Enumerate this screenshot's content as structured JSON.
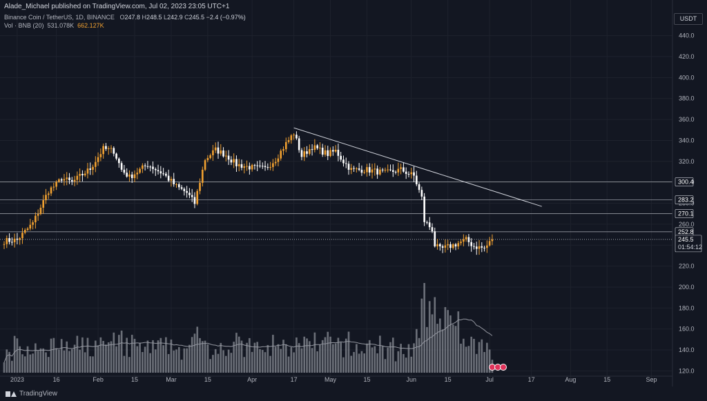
{
  "header": {
    "published": "Alade_Michael published on TradingView.com, Jul 02, 2023 23:05 UTC+1",
    "symbol": "Binance Coin / TetherUS, 1D, BINANCE",
    "o_label": "O",
    "o": "247.8",
    "h_label": "H",
    "h": "248.5",
    "l_label": "L",
    "l": "242.9",
    "c_label": "C",
    "c": "245.5",
    "change": "−2.4 (−0.97%)",
    "volume_label": "Vol · BNB (20)",
    "volume_value": "531.078K",
    "volume_ma": "662.127K"
  },
  "axis_unit": "USDT",
  "footer": {
    "brand": "TradingView"
  },
  "colors": {
    "bg": "#131722",
    "up": "#f0a030",
    "down": "#ffffff",
    "vol": "#8a8d96",
    "grid": "#1e222d"
  },
  "chart_data": {
    "type": "candlestick",
    "title": "",
    "y_ticks": [
      440,
      420,
      400,
      380,
      360,
      340,
      320,
      300,
      280,
      260,
      240,
      220,
      200,
      180,
      160,
      140,
      120
    ],
    "ylim": [
      113,
      449
    ],
    "x_ticks": [
      {
        "label": "2023",
        "date": "2023-01-01"
      },
      {
        "label": "16",
        "date": "2023-01-16"
      },
      {
        "label": "Feb",
        "date": "2023-02-01"
      },
      {
        "label": "15",
        "date": "2023-02-15"
      },
      {
        "label": "Mar",
        "date": "2023-03-01"
      },
      {
        "label": "15",
        "date": "2023-03-15"
      },
      {
        "label": "Apr",
        "date": "2023-04-01"
      },
      {
        "label": "17",
        "date": "2023-04-17"
      },
      {
        "label": "May",
        "date": "2023-05-01"
      },
      {
        "label": "15",
        "date": "2023-05-15"
      },
      {
        "label": "Jun",
        "date": "2023-06-01"
      },
      {
        "label": "15",
        "date": "2023-06-15"
      },
      {
        "label": "Jul",
        "date": "2023-07-01"
      },
      {
        "label": "17",
        "date": "2023-07-17"
      },
      {
        "label": "Aug",
        "date": "2023-08-01"
      },
      {
        "label": "15",
        "date": "2023-08-15"
      },
      {
        "label": "Sep",
        "date": "2023-09-01"
      }
    ],
    "xlim": [
      "2022-12-27",
      "2023-09-08"
    ],
    "horizontal_levels": [
      {
        "label": "300.4",
        "value": 300.4
      },
      {
        "label": "283.2",
        "value": 283.2
      },
      {
        "label": "270.1",
        "value": 270.1
      },
      {
        "label": "252.8",
        "value": 252.8
      }
    ],
    "current_price": {
      "label": "245.5",
      "value": 245.5,
      "countdown": "01:54:12"
    },
    "trendline": [
      {
        "date": "2023-04-17",
        "value": 352
      },
      {
        "date": "2023-07-21",
        "value": 277
      }
    ],
    "anchors": [
      [
        "2022-12-27",
        244
      ],
      [
        "2023-01-01",
        245
      ],
      [
        "2023-01-07",
        261
      ],
      [
        "2023-01-13",
        292
      ],
      [
        "2023-01-16",
        298
      ],
      [
        "2023-01-18",
        304
      ],
      [
        "2023-01-22",
        300
      ],
      [
        "2023-01-29",
        313
      ],
      [
        "2023-02-03",
        332
      ],
      [
        "2023-02-07",
        330
      ],
      [
        "2023-02-10",
        312
      ],
      [
        "2023-02-13",
        305
      ],
      [
        "2023-02-20",
        317
      ],
      [
        "2023-02-26",
        308
      ],
      [
        "2023-03-03",
        296
      ],
      [
        "2023-03-07",
        290
      ],
      [
        "2023-03-10",
        280
      ],
      [
        "2023-03-12",
        301
      ],
      [
        "2023-03-14",
        322
      ],
      [
        "2023-03-18",
        331
      ],
      [
        "2023-03-22",
        326
      ],
      [
        "2023-03-26",
        317
      ],
      [
        "2023-04-01",
        314
      ],
      [
        "2023-04-06",
        313
      ],
      [
        "2023-04-10",
        322
      ],
      [
        "2023-04-14",
        337
      ],
      [
        "2023-04-17",
        347
      ],
      [
        "2023-04-20",
        325
      ],
      [
        "2023-04-24",
        334
      ],
      [
        "2023-04-30",
        327
      ],
      [
        "2023-05-03",
        330
      ],
      [
        "2023-05-06",
        320
      ],
      [
        "2023-05-09",
        312
      ],
      [
        "2023-05-15",
        312
      ],
      [
        "2023-05-22",
        309
      ],
      [
        "2023-05-28",
        312
      ],
      [
        "2023-06-02",
        306
      ],
      [
        "2023-06-05",
        285
      ],
      [
        "2023-06-06",
        263
      ],
      [
        "2023-06-09",
        255
      ],
      [
        "2023-06-10",
        240
      ],
      [
        "2023-06-12",
        236
      ],
      [
        "2023-06-17",
        240
      ],
      [
        "2023-06-22",
        245
      ],
      [
        "2023-06-25",
        239
      ],
      [
        "2023-06-29",
        237
      ],
      [
        "2023-07-02",
        245
      ]
    ],
    "volume_series": {
      "name": "Vol",
      "ma_name": "Vol (20) MA"
    }
  }
}
